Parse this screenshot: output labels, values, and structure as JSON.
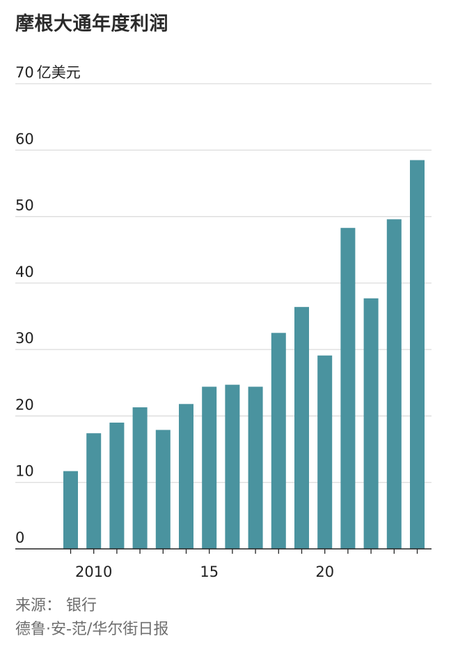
{
  "chart_data": {
    "type": "bar",
    "title": "摩根大通年度利润",
    "y_unit": "亿美元",
    "x": [
      2009,
      2010,
      2011,
      2012,
      2013,
      2014,
      2015,
      2016,
      2017,
      2018,
      2019,
      2020,
      2021,
      2022,
      2023,
      2024
    ],
    "values": [
      11.7,
      17.4,
      19.0,
      21.3,
      17.9,
      21.8,
      24.4,
      24.7,
      24.4,
      32.5,
      36.4,
      29.1,
      48.3,
      37.7,
      49.6,
      58.5
    ],
    "ylim": [
      0,
      70
    ],
    "yticks": [
      0,
      10,
      20,
      30,
      40,
      50,
      60,
      70
    ],
    "xtick_labels": [
      {
        "x": 2010,
        "label": "2010"
      },
      {
        "x": 2015,
        "label": "15"
      },
      {
        "x": 2020,
        "label": "20"
      }
    ],
    "grid": true,
    "bar_color": "#4a939f",
    "grid_color": "#dcdcdc",
    "axis_color": "#222222"
  },
  "source": {
    "line1": "来源：  银行",
    "line2": "德鲁·安-范/华尔街日报"
  }
}
